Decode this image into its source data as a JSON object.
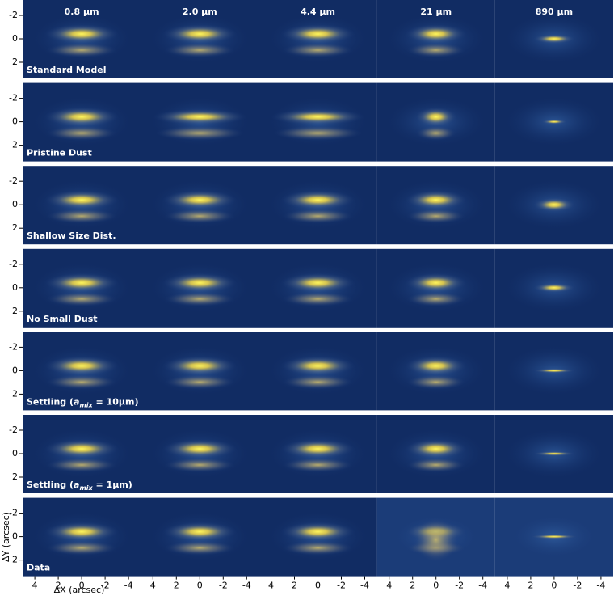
{
  "columns": [
    "0.8 μm",
    "2.0 μm",
    "4.4 μm",
    "21 μm",
    "890 μm"
  ],
  "rows": [
    {
      "label": [
        "Standard Model"
      ]
    },
    {
      "label": [
        "Pristine Dust"
      ]
    },
    {
      "label": [
        "Shallow Size Dist."
      ]
    },
    {
      "label": [
        "No Small Dust"
      ]
    },
    {
      "label": [
        "Settling (",
        "a",
        "mix",
        " = 10μm)"
      ]
    },
    {
      "label": [
        "Settling (",
        "a",
        "mix",
        " = 1μm)"
      ]
    },
    {
      "label": [
        "Data"
      ]
    }
  ],
  "axes": {
    "xticks": [
      4,
      2,
      0,
      -2,
      -4
    ],
    "yticks": [
      -2,
      0,
      2
    ],
    "xlabel": "ΔX (arcsec)",
    "ylabel": "ΔY (arcsec)"
  }
}
